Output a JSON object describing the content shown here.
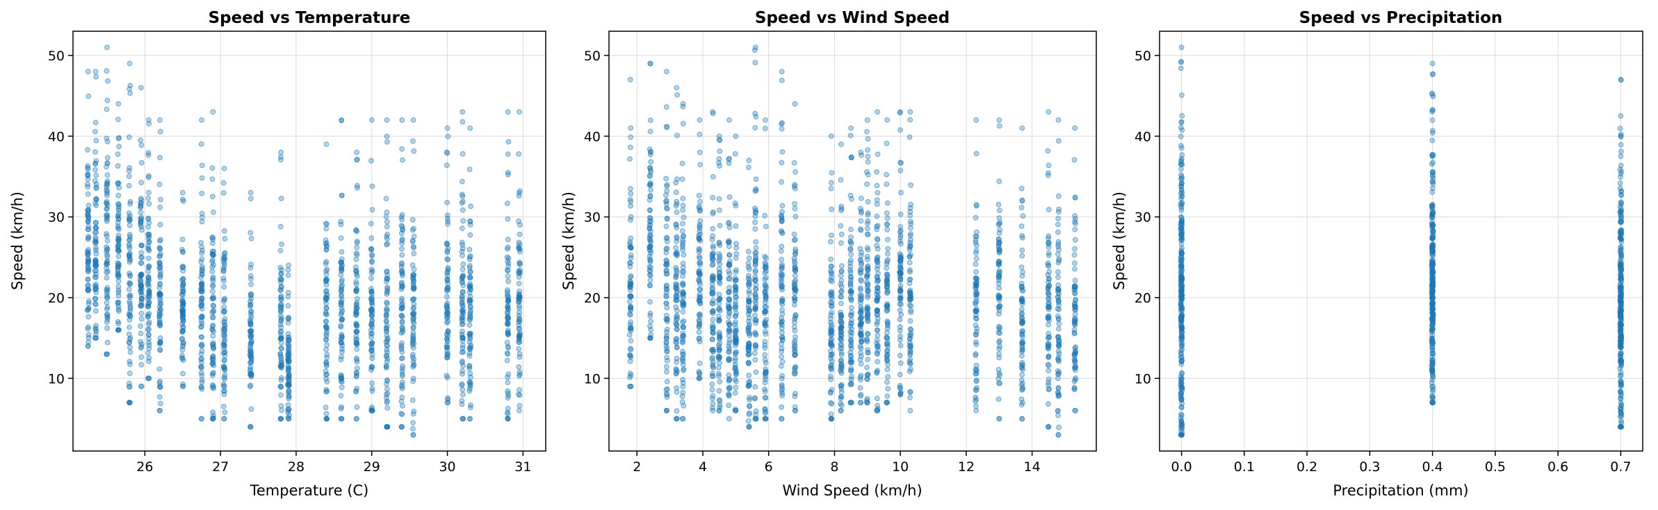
{
  "chart_data": [
    {
      "type": "scatter",
      "title": "Speed vs Temperature",
      "xlabel": "Temperature (C)",
      "ylabel": "Speed (km/h)",
      "xlim": [
        25.05,
        31.3
      ],
      "ylim": [
        1,
        53
      ],
      "xticks": [
        26,
        27,
        28,
        29,
        30,
        31
      ],
      "yticks": [
        10,
        20,
        30,
        40,
        50
      ],
      "grid": true,
      "color": "#1f77b4",
      "x_positions": [
        25.25,
        25.35,
        25.5,
        25.65,
        25.8,
        25.95,
        26.05,
        26.2,
        26.5,
        26.75,
        26.9,
        27.05,
        27.4,
        27.8,
        27.9,
        28.4,
        28.6,
        28.8,
        29.0,
        29.2,
        29.4,
        29.55,
        30.0,
        30.2,
        30.3,
        30.8,
        30.95
      ],
      "y_ranges": [
        [
          14,
          48
        ],
        [
          15,
          48
        ],
        [
          13,
          51
        ],
        [
          16,
          44
        ],
        [
          7,
          49
        ],
        [
          9,
          46
        ],
        [
          10,
          42
        ],
        [
          6,
          42
        ],
        [
          9,
          33
        ],
        [
          5,
          42
        ],
        [
          5,
          43
        ],
        [
          5,
          36
        ],
        [
          4,
          33
        ],
        [
          5,
          38
        ],
        [
          5,
          24
        ],
        [
          5,
          39
        ],
        [
          5,
          42
        ],
        [
          5,
          38
        ],
        [
          6,
          42
        ],
        [
          4,
          42
        ],
        [
          4,
          42
        ],
        [
          3,
          42
        ],
        [
          7,
          41
        ],
        [
          5,
          43
        ],
        [
          5,
          41
        ],
        [
          5,
          43
        ],
        [
          6,
          43
        ]
      ]
    },
    {
      "type": "scatter",
      "title": "Speed vs Wind Speed",
      "xlabel": "Wind Speed (km/h)",
      "ylabel": "Speed (km/h)",
      "xlim": [
        1.15,
        15.95
      ],
      "ylim": [
        1,
        53
      ],
      "xticks": [
        2,
        4,
        6,
        8,
        10,
        12,
        14
      ],
      "yticks": [
        10,
        20,
        30,
        40,
        50
      ],
      "grid": true,
      "color": "#1f77b4",
      "x_positions": [
        1.8,
        2.4,
        2.9,
        3.2,
        3.4,
        3.9,
        4.3,
        4.5,
        4.8,
        5.0,
        5.4,
        5.6,
        5.9,
        6.4,
        6.8,
        7.9,
        8.2,
        8.5,
        8.8,
        9.0,
        9.3,
        9.6,
        10.0,
        10.3,
        12.3,
        13.0,
        13.7,
        14.5,
        14.8,
        15.3
      ],
      "y_ranges": [
        [
          9,
          47
        ],
        [
          15,
          49
        ],
        [
          6,
          48
        ],
        [
          5,
          46
        ],
        [
          5,
          44
        ],
        [
          10,
          42
        ],
        [
          6,
          43
        ],
        [
          6,
          40
        ],
        [
          5,
          42
        ],
        [
          6,
          40
        ],
        [
          4,
          37
        ],
        [
          5,
          51
        ],
        [
          5,
          42
        ],
        [
          5,
          48
        ],
        [
          6,
          44
        ],
        [
          5,
          40
        ],
        [
          6,
          39
        ],
        [
          7,
          41
        ],
        [
          7,
          38
        ],
        [
          7,
          42
        ],
        [
          6,
          43
        ],
        [
          7,
          42
        ],
        [
          8,
          43
        ],
        [
          6,
          43
        ],
        [
          6,
          42
        ],
        [
          5,
          42
        ],
        [
          5,
          41
        ],
        [
          4,
          43
        ],
        [
          3,
          42
        ],
        [
          6,
          41
        ]
      ]
    },
    {
      "type": "scatter",
      "title": "Speed vs Precipitation",
      "xlabel": "Precipitation (mm)",
      "ylabel": "Speed (km/h)",
      "xlim": [
        -0.035,
        0.735
      ],
      "ylim": [
        1,
        53
      ],
      "xticks": [
        0.0,
        0.1,
        0.2,
        0.3,
        0.4,
        0.5,
        0.6,
        0.7
      ],
      "yticks": [
        10,
        20,
        30,
        40,
        50
      ],
      "grid": true,
      "color": "#1f77b4",
      "x_positions": [
        0.0,
        0.4,
        0.7
      ],
      "y_ranges": [
        [
          3,
          51
        ],
        [
          7,
          49
        ],
        [
          4,
          47
        ]
      ]
    }
  ]
}
